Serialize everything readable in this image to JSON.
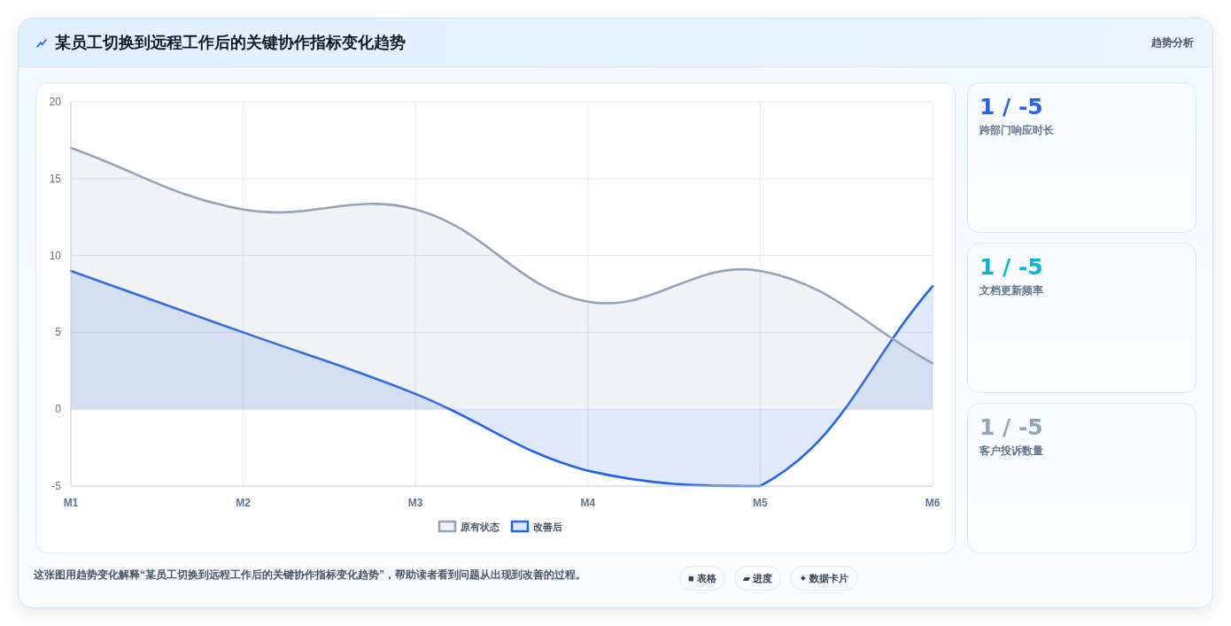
{
  "chart_data": [
    {
      "type": "area",
      "title": "某员工切换到远程工作后的关键协作指标变化趋势",
      "categories": [
        "M1",
        "M2",
        "M3",
        "M4",
        "M5",
        "M6"
      ],
      "series": [
        {
          "name": "原有状态",
          "color": "#94a3b8",
          "values": [
            17,
            13,
            13,
            7,
            9,
            3
          ]
        },
        {
          "name": "改善后",
          "color": "#2563eb",
          "values": [
            9,
            5,
            1,
            -4,
            -5,
            8
          ]
        }
      ],
      "ylim": [
        -5,
        20
      ],
      "yticks": [
        -5,
        0,
        5,
        10,
        15,
        20
      ],
      "grid": true,
      "legend": "bottom",
      "annotations": [
        "趋势分析",
        "这张图用趋势变化解释“某员工切换到远程工作后的关键协作指标变化趋势”，帮助读者看到问题从出现到改善的过程。",
        "■ 表格",
        "▰ 进度",
        "✦ 数据卡片"
      ]
    },
    {
      "type": "other",
      "title": "1 / -5",
      "subtitle": "跨部门响应时长",
      "color": "#2563eb"
    },
    {
      "type": "other",
      "title": "1 / -5",
      "subtitle": "文档更新频率",
      "color": "#06b6d4"
    },
    {
      "type": "other",
      "title": "1 / -5",
      "subtitle": "客户投诉数量",
      "color": "#94a3b8"
    }
  ]
}
